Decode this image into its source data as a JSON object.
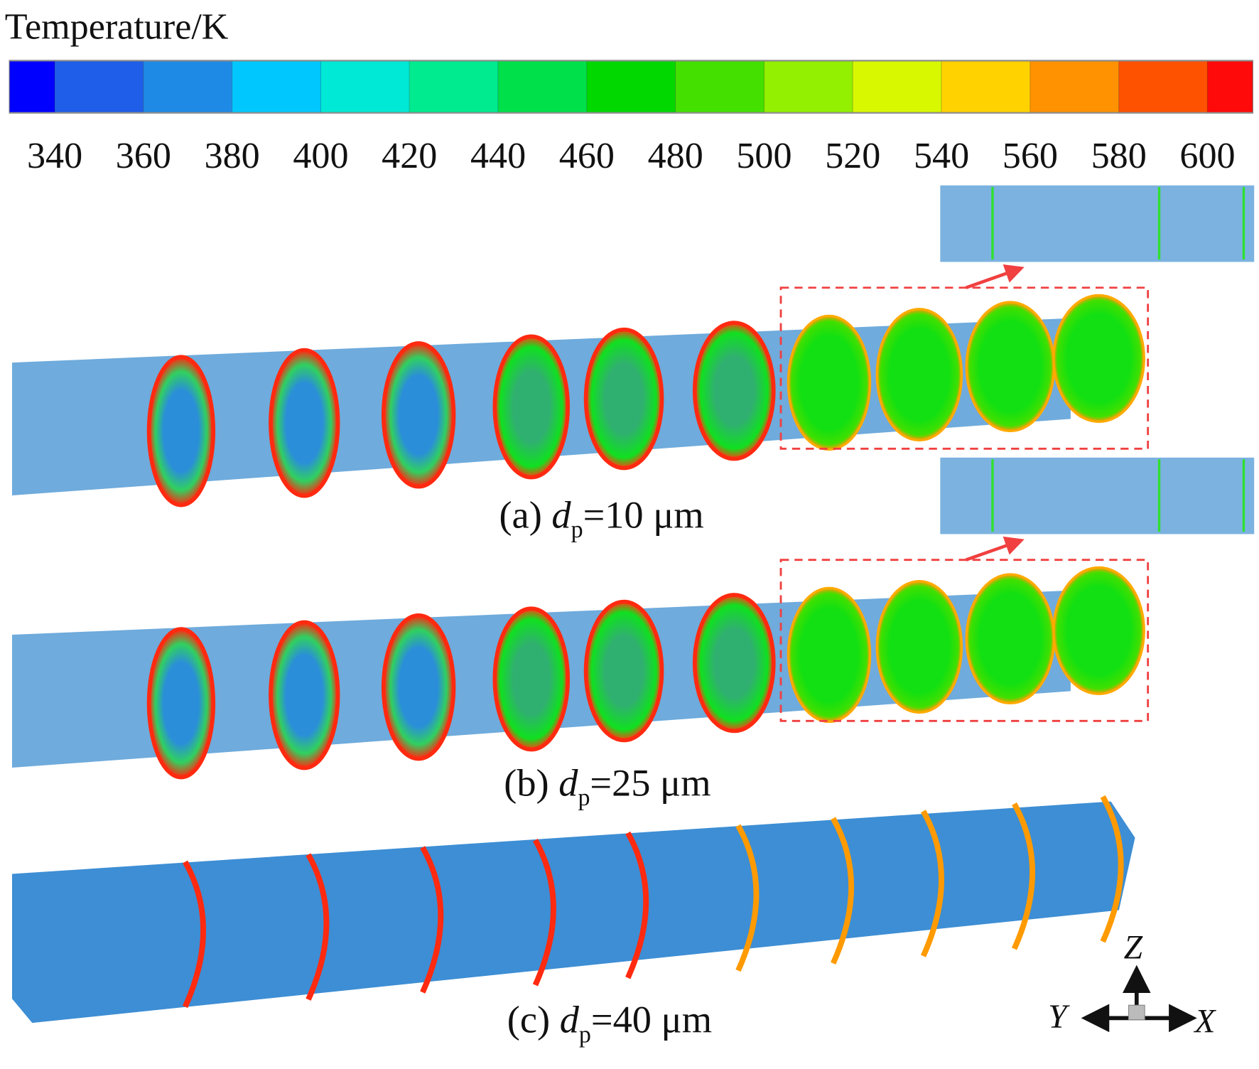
{
  "colorbar": {
    "title": "Temperature/K",
    "ticks": [
      340,
      360,
      380,
      400,
      420,
      440,
      460,
      480,
      500,
      520,
      540,
      560,
      580,
      600
    ],
    "colors": [
      "#0000ff",
      "#1e5ee8",
      "#1f8ae6",
      "#00c8ff",
      "#00e8d6",
      "#00ea90",
      "#00e04a",
      "#00d800",
      "#44e000",
      "#92f000",
      "#d8f800",
      "#ffd200",
      "#ff9200",
      "#ff5200",
      "#ff0a0a"
    ]
  },
  "panels": [
    {
      "label": "(a)",
      "symbol": "d",
      "subscript": "p",
      "text": "=10 μm"
    },
    {
      "label": "(b)",
      "symbol": "d",
      "subscript": "p",
      "text": "=25 μm"
    },
    {
      "label": "(c)",
      "symbol": "d",
      "subscript": "p",
      "text": "=40 μm"
    }
  ],
  "axes": {
    "z": "Z",
    "y": "Y",
    "x": "X"
  }
}
